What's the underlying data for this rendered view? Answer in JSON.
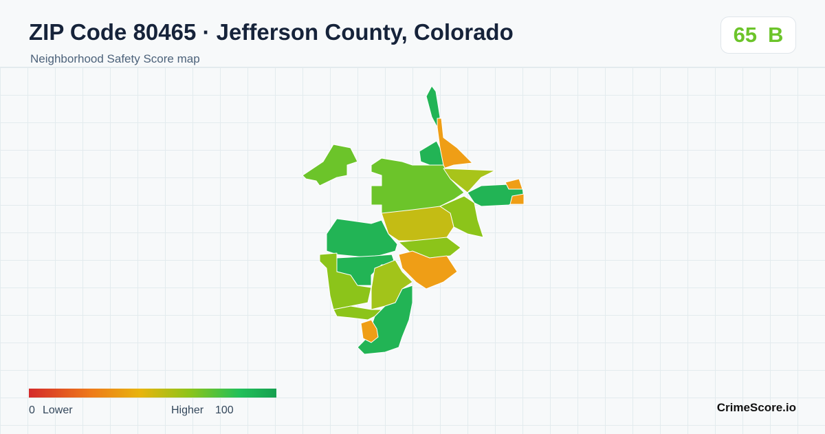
{
  "header": {
    "title": "ZIP Code 80465 · Jefferson County, Colorado",
    "subtitle": "Neighborhood Safety Score map"
  },
  "score": {
    "value": 65,
    "grade": "B"
  },
  "legend": {
    "min": 0,
    "min_label": "Lower",
    "max_label": "Higher",
    "max": 100
  },
  "brand": "CrimeScore.io"
}
